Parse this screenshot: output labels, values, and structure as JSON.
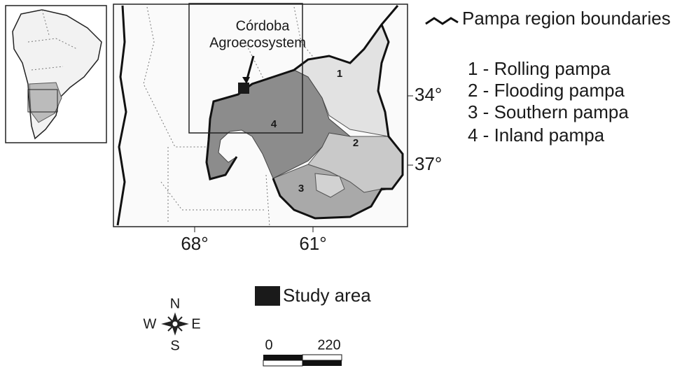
{
  "legend": {
    "boundary": "Pampa region boundaries",
    "study_area": "Study area"
  },
  "regions": [
    "1 - Rolling pampa",
    "2 - Flooding pampa",
    "3 - Southern pampa",
    "4 - Inland pampa"
  ],
  "map_labels": {
    "study": [
      "Córdoba",
      "Agroecosystem"
    ],
    "numbers": [
      "1",
      "2",
      "3",
      "4"
    ]
  },
  "latitude_ticks": [
    "34°",
    "37°"
  ],
  "longitude_ticks": [
    "68°",
    "61°"
  ],
  "compass": {
    "north": "N",
    "south": "S",
    "east": "E",
    "west": "W"
  },
  "scale": [
    "0",
    "220"
  ]
}
